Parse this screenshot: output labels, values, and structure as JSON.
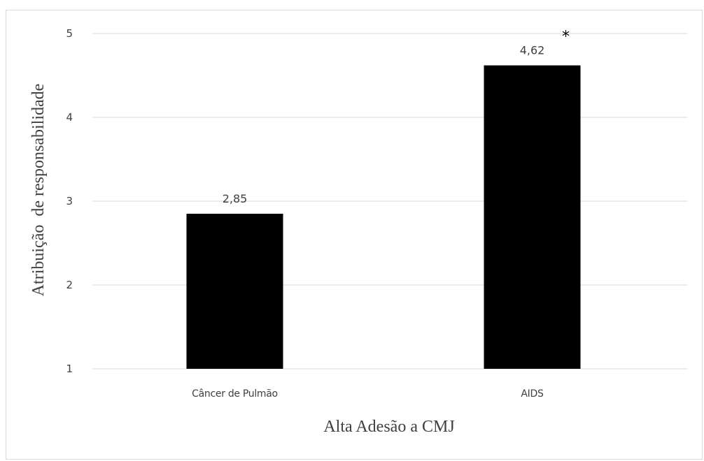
{
  "chart_data": {
    "type": "bar",
    "categories": [
      "Câncer de Pulmão",
      "AIDS"
    ],
    "values": [
      2.85,
      4.62
    ],
    "value_labels": [
      "2,85",
      "4,62"
    ],
    "annotations": [
      "",
      "*"
    ],
    "title": "",
    "xlabel": "Alta Adesão a CMJ",
    "ylabel": "Atribuição  de responsabilidade",
    "ylim": [
      1,
      5
    ],
    "yticks": [
      "1",
      "2",
      "3",
      "4",
      "5"
    ],
    "grid": true,
    "bar_color": "#000000",
    "grid_color": "#d9d9d9"
  }
}
